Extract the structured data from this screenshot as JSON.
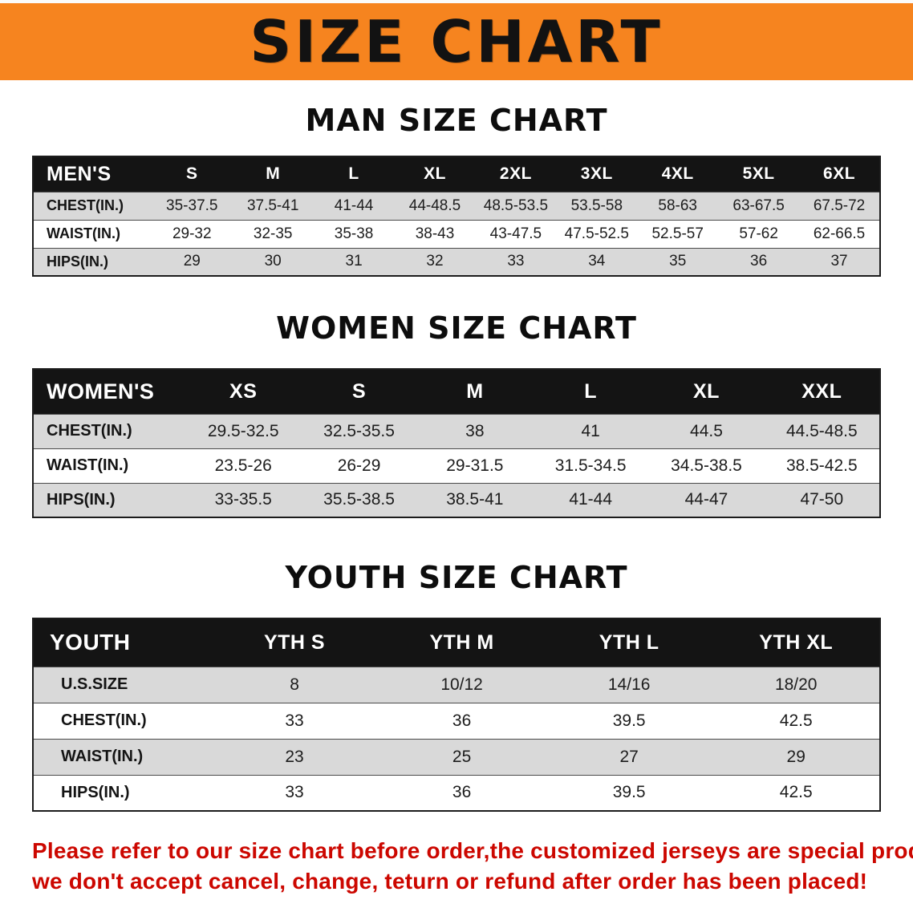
{
  "banner": {
    "title": "SIZE CHART"
  },
  "sections": [
    {
      "heading": "MAN SIZE CHART",
      "table": {
        "header": [
          "MEN'S",
          "S",
          "M",
          "L",
          "XL",
          "2XL",
          "3XL",
          "4XL",
          "5XL",
          "6XL"
        ],
        "rows": [
          [
            "CHEST(IN.)",
            "35-37.5",
            "37.5-41",
            "41-44",
            "44-48.5",
            "48.5-53.5",
            "53.5-58",
            "58-63",
            "63-67.5",
            "67.5-72"
          ],
          [
            "WAIST(IN.)",
            "29-32",
            "32-35",
            "35-38",
            "38-43",
            "43-47.5",
            "47.5-52.5",
            "52.5-57",
            "57-62",
            "62-66.5"
          ],
          [
            "HIPS(IN.)",
            "29",
            "30",
            "31",
            "32",
            "33",
            "34",
            "35",
            "36",
            "37"
          ]
        ]
      }
    },
    {
      "heading": "WOMEN SIZE CHART",
      "table": {
        "header": [
          "WOMEN'S",
          "XS",
          "S",
          "M",
          "L",
          "XL",
          "XXL"
        ],
        "rows": [
          [
            "CHEST(IN.)",
            "29.5-32.5",
            "32.5-35.5",
            "38",
            "41",
            "44.5",
            "44.5-48.5"
          ],
          [
            "WAIST(IN.)",
            "23.5-26",
            "26-29",
            "29-31.5",
            "31.5-34.5",
            "34.5-38.5",
            "38.5-42.5"
          ],
          [
            "HIPS(IN.)",
            "33-35.5",
            "35.5-38.5",
            "38.5-41",
            "41-44",
            "44-47",
            "47-50"
          ]
        ]
      }
    },
    {
      "heading": "YOUTH SIZE CHART",
      "table": {
        "header": [
          "YOUTH",
          "YTH S",
          "YTH M",
          "YTH L",
          "YTH XL"
        ],
        "rows": [
          [
            "U.S.SIZE",
            "8",
            "10/12",
            "14/16",
            "18/20"
          ],
          [
            "CHEST(IN.)",
            "33",
            "36",
            "39.5",
            "42.5"
          ],
          [
            "WAIST(IN.)",
            "23",
            "25",
            "27",
            "29"
          ],
          [
            "HIPS(IN.)",
            "33",
            "36",
            "39.5",
            "42.5"
          ]
        ]
      }
    }
  ],
  "footer": {
    "line1": "Please refer to our size chart before order,the customized jerseys are special products,",
    "line2": "we don't accept cancel, change, teturn or refund after order has been placed!"
  },
  "colors": {
    "banner_bg": "#f6841f",
    "table_header_bg": "#141414",
    "row_alt_bg": "#d9d9d9",
    "notice_text": "#cc0700"
  }
}
